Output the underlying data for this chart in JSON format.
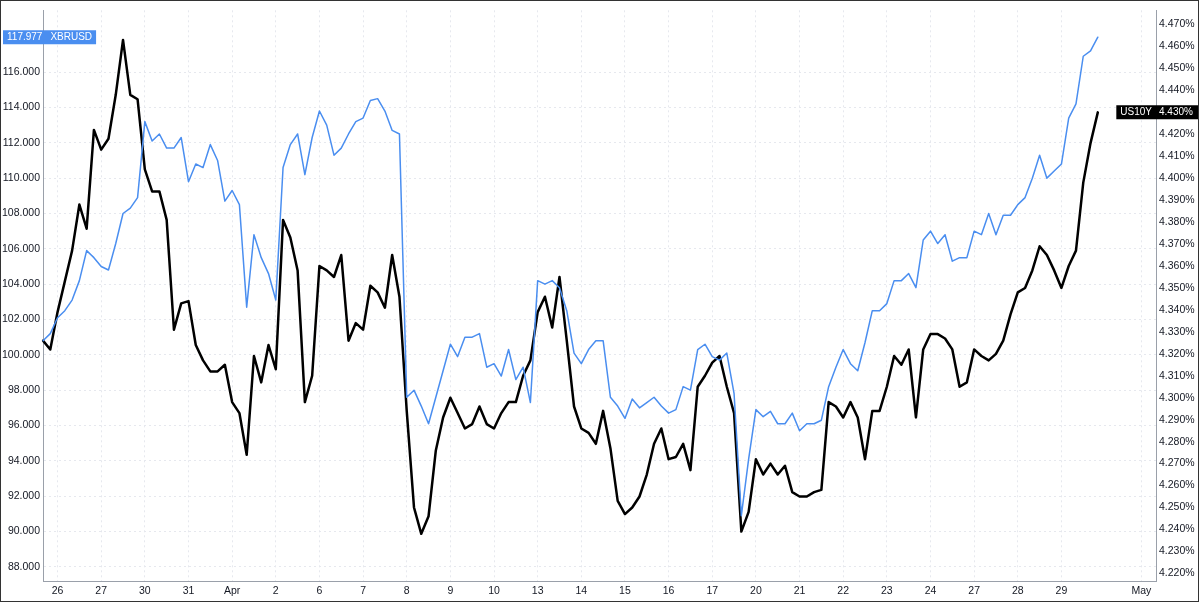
{
  "chart_data": {
    "type": "line",
    "categories": [
      null,
      null,
      "26",
      null,
      null,
      null,
      null,
      null,
      "27",
      null,
      null,
      null,
      null,
      null,
      "30",
      null,
      null,
      null,
      null,
      null,
      "31",
      null,
      null,
      null,
      null,
      null,
      "Apr",
      null,
      null,
      null,
      null,
      null,
      "2",
      null,
      null,
      null,
      null,
      null,
      "6",
      null,
      null,
      null,
      null,
      null,
      "7",
      null,
      null,
      null,
      null,
      null,
      "8",
      null,
      null,
      null,
      null,
      null,
      "9",
      null,
      null,
      null,
      null,
      null,
      "10",
      null,
      null,
      null,
      null,
      null,
      "13",
      null,
      null,
      null,
      null,
      null,
      "14",
      null,
      null,
      null,
      null,
      null,
      "15",
      null,
      null,
      null,
      null,
      null,
      "16",
      null,
      null,
      null,
      null,
      null,
      "17",
      null,
      null,
      null,
      null,
      null,
      "20",
      null,
      null,
      null,
      null,
      null,
      "21",
      null,
      null,
      null,
      null,
      null,
      "22",
      null,
      null,
      null,
      null,
      null,
      "23",
      null,
      null,
      null,
      null,
      null,
      "24",
      null,
      null,
      null,
      null,
      null,
      "27",
      null,
      null,
      null,
      null,
      null,
      "28",
      null,
      null,
      null,
      null,
      null,
      "29",
      null,
      null,
      null,
      null,
      null,
      null,
      null,
      null,
      null,
      null,
      "May",
      null,
      null
    ],
    "series": [
      {
        "name": "XBRUSD",
        "color": "#4a8ef0",
        "axis": "y",
        "values": [
          100.8,
          101.2,
          102.1,
          102.5,
          103.1,
          104.2,
          105.9,
          105.5,
          105.0,
          104.8,
          106.3,
          108.0,
          108.3,
          108.9,
          113.2,
          112.1,
          112.5,
          111.7,
          111.7,
          112.3,
          109.8,
          110.8,
          110.6,
          111.9,
          111.0,
          108.7,
          109.3,
          108.5,
          102.7,
          106.8,
          105.5,
          104.6,
          103.1,
          110.6,
          111.9,
          112.5,
          110.2,
          112.3,
          113.8,
          113.0,
          111.3,
          111.7,
          112.5,
          113.2,
          113.4,
          114.4,
          114.5,
          113.8,
          112.7,
          112.5,
          97.6,
          98.0,
          97.1,
          96.1,
          97.6,
          99.1,
          100.6,
          99.9,
          101.0,
          101.0,
          101.2,
          99.3,
          99.5,
          98.8,
          100.3,
          98.6,
          99.3,
          97.3,
          104.2,
          104.0,
          104.2,
          103.8,
          102.5,
          100.1,
          99.5,
          100.3,
          100.8,
          100.8,
          97.6,
          97.1,
          96.4,
          97.5,
          97.0,
          97.3,
          97.6,
          97.1,
          96.7,
          96.9,
          98.2,
          98.0,
          100.3,
          100.6,
          99.9,
          99.7,
          100.1,
          97.8,
          90.9,
          94.1,
          96.9,
          96.5,
          96.8,
          96.1,
          96.1,
          96.7,
          95.7,
          96.1,
          96.1,
          96.3,
          98.2,
          99.3,
          100.3,
          99.5,
          99.1,
          100.7,
          102.5,
          102.5,
          102.9,
          104.2,
          104.2,
          104.6,
          103.8,
          106.5,
          107.0,
          106.3,
          106.8,
          105.3,
          105.5,
          105.5,
          107.0,
          106.8,
          108.0,
          106.8,
          107.9,
          107.9,
          108.5,
          108.9,
          110.0,
          111.3,
          110.0,
          110.4,
          110.8,
          113.4,
          114.2,
          116.9,
          117.2,
          117.977,
          null,
          null,
          null,
          null,
          null,
          null,
          null,
          null
        ]
      },
      {
        "name": "US10Y",
        "color": "#000000",
        "axis": "y2",
        "values": [
          4.326,
          4.322,
          4.339,
          4.353,
          4.367,
          4.388,
          4.377,
          4.422,
          4.413,
          4.418,
          4.438,
          4.463,
          4.438,
          4.436,
          4.404,
          4.394,
          4.394,
          4.381,
          4.331,
          4.343,
          4.344,
          4.324,
          4.317,
          4.312,
          4.312,
          4.315,
          4.298,
          4.293,
          4.274,
          4.319,
          4.307,
          4.324,
          4.313,
          4.381,
          4.373,
          4.358,
          4.298,
          4.31,
          4.36,
          4.358,
          4.355,
          4.365,
          4.326,
          4.334,
          4.331,
          4.351,
          4.348,
          4.341,
          4.365,
          4.346,
          4.294,
          4.25,
          4.238,
          4.246,
          4.276,
          4.291,
          4.3,
          4.293,
          4.286,
          4.288,
          4.296,
          4.288,
          4.286,
          4.293,
          4.298,
          4.298,
          4.31,
          4.317,
          4.339,
          4.346,
          4.332,
          4.355,
          4.326,
          4.296,
          4.286,
          4.284,
          4.279,
          4.294,
          4.277,
          4.253,
          4.247,
          4.25,
          4.255,
          4.265,
          4.279,
          4.286,
          4.272,
          4.273,
          4.279,
          4.267,
          4.305,
          4.31,
          4.316,
          4.319,
          4.305,
          4.293,
          4.239,
          4.248,
          4.272,
          4.265,
          4.27,
          4.265,
          4.269,
          4.257,
          4.255,
          4.255,
          4.257,
          4.258,
          4.298,
          4.296,
          4.291,
          4.298,
          4.291,
          4.272,
          4.294,
          4.294,
          4.305,
          4.319,
          4.315,
          4.322,
          4.291,
          4.322,
          4.329,
          4.329,
          4.327,
          4.322,
          4.305,
          4.307,
          4.322,
          4.319,
          4.317,
          4.32,
          4.326,
          4.338,
          4.348,
          4.35,
          4.358,
          4.369,
          4.365,
          4.358,
          4.35,
          4.36,
          4.367,
          4.398,
          4.416,
          4.43,
          null,
          null,
          null,
          null,
          null,
          null,
          null,
          null
        ]
      }
    ],
    "ylim": [
      87.2,
      119.5
    ],
    "yticks": [
      {
        "value": 88,
        "label": "88.000"
      },
      {
        "value": 90,
        "label": "90.000"
      },
      {
        "value": 92,
        "label": "92.000"
      },
      {
        "value": 94,
        "label": "94.000"
      },
      {
        "value": 96,
        "label": "96.000"
      },
      {
        "value": 98,
        "label": "98.000"
      },
      {
        "value": 100,
        "label": "100.000"
      },
      {
        "value": 102,
        "label": "102.000"
      },
      {
        "value": 104,
        "label": "104.000"
      },
      {
        "value": 106,
        "label": "106.000"
      },
      {
        "value": 108,
        "label": "108.000"
      },
      {
        "value": 110,
        "label": "110.000"
      },
      {
        "value": 112,
        "label": "112.000"
      },
      {
        "value": 114,
        "label": "114.000"
      },
      {
        "value": 116,
        "label": "116.000"
      }
    ],
    "y2lim": [
      4.2165,
      4.4765
    ],
    "y2ticks": [
      {
        "value": 4.22,
        "label": "4.220%"
      },
      {
        "value": 4.23,
        "label": "4.230%"
      },
      {
        "value": 4.24,
        "label": "4.240%"
      },
      {
        "value": 4.25,
        "label": "4.250%"
      },
      {
        "value": 4.26,
        "label": "4.260%"
      },
      {
        "value": 4.27,
        "label": "4.270%"
      },
      {
        "value": 4.28,
        "label": "4.280%"
      },
      {
        "value": 4.29,
        "label": "4.290%"
      },
      {
        "value": 4.3,
        "label": "4.300%"
      },
      {
        "value": 4.31,
        "label": "4.310%"
      },
      {
        "value": 4.32,
        "label": "4.320%"
      },
      {
        "value": 4.33,
        "label": "4.330%"
      },
      {
        "value": 4.34,
        "label": "4.340%"
      },
      {
        "value": 4.35,
        "label": "4.350%"
      },
      {
        "value": 4.36,
        "label": "4.360%"
      },
      {
        "value": 4.37,
        "label": "4.370%"
      },
      {
        "value": 4.38,
        "label": "4.380%"
      },
      {
        "value": 4.39,
        "label": "4.390%"
      },
      {
        "value": 4.4,
        "label": "4.400%"
      },
      {
        "value": 4.41,
        "label": "4.410%"
      },
      {
        "value": 4.42,
        "label": "4.420%"
      },
      {
        "value": 4.44,
        "label": "4.440%"
      },
      {
        "value": 4.45,
        "label": "4.450%"
      },
      {
        "value": 4.46,
        "label": "4.460%"
      },
      {
        "value": 4.47,
        "label": "4.470%"
      }
    ],
    "annotations": [
      "117.977",
      "4.430%"
    ],
    "grid": true
  }
}
